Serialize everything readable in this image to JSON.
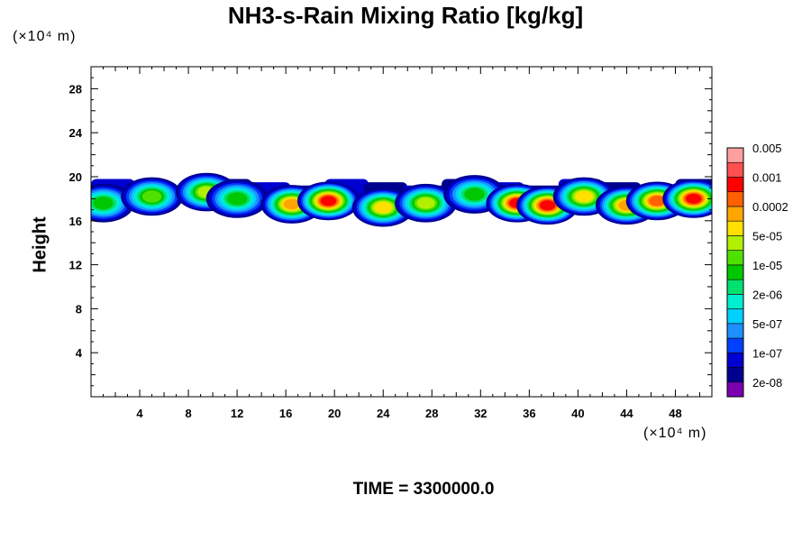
{
  "chart_data": {
    "type": "heatmap",
    "title": "NH3-s-Rain Mixing Ratio [kg/kg]",
    "xlabel": "",
    "ylabel": "Height",
    "x_unit": "(×10⁴ m)",
    "y_unit": "(×10⁴ m)",
    "xlim": [
      0,
      51
    ],
    "ylim": [
      0,
      30
    ],
    "x_ticks": [
      4,
      8,
      12,
      16,
      20,
      24,
      28,
      32,
      36,
      40,
      44,
      48
    ],
    "y_ticks": [
      4,
      8,
      12,
      16,
      20,
      24,
      28
    ],
    "colorbar": {
      "colors": [
        "#7a00b0",
        "#00008f",
        "#0000d0",
        "#0040ff",
        "#1e90ff",
        "#00d0ff",
        "#00eed0",
        "#00e070",
        "#00c800",
        "#50e000",
        "#b0f000",
        "#ffe000",
        "#ffa500",
        "#ff6000",
        "#ff0000",
        "#ff5050",
        "#ffa0a0"
      ],
      "labels": [
        "2e-08",
        "1e-07",
        "5e-07",
        "2e-06",
        "1e-05",
        "5e-05",
        "0.0002",
        "0.001",
        "0.005"
      ]
    },
    "field": {
      "cloud_layer_height_range": [
        16,
        20
      ],
      "blobs": [
        {
          "x": 1,
          "y": 17.6,
          "level": 8
        },
        {
          "x": 5,
          "y": 18.2,
          "level": 9
        },
        {
          "x": 9.5,
          "y": 18.6,
          "level": 10
        },
        {
          "x": 12,
          "y": 18.0,
          "level": 8
        },
        {
          "x": 16.5,
          "y": 17.5,
          "level": 12
        },
        {
          "x": 19.5,
          "y": 17.8,
          "level": 14
        },
        {
          "x": 24,
          "y": 17.2,
          "level": 11
        },
        {
          "x": 27.5,
          "y": 17.6,
          "level": 10
        },
        {
          "x": 31.5,
          "y": 18.4,
          "level": 8
        },
        {
          "x": 35,
          "y": 17.6,
          "level": 14
        },
        {
          "x": 37.5,
          "y": 17.4,
          "level": 14
        },
        {
          "x": 40.5,
          "y": 18.2,
          "level": 11
        },
        {
          "x": 44,
          "y": 17.4,
          "level": 12
        },
        {
          "x": 46.5,
          "y": 17.8,
          "level": 13
        },
        {
          "x": 49.5,
          "y": 18.0,
          "level": 14
        }
      ]
    }
  },
  "footer": {
    "time_label": "TIME = 3300000.0"
  }
}
